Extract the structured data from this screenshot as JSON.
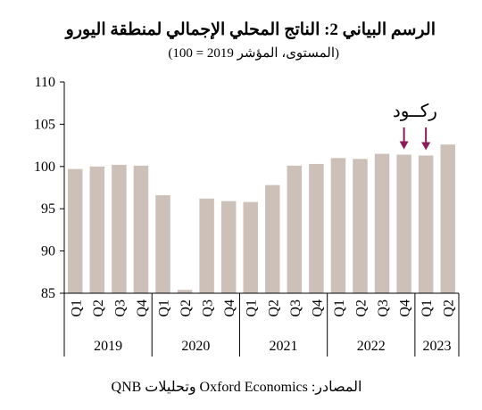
{
  "title": "الرسم البياني 2: الناتج المحلي الإجمالي لمنطقة اليورو",
  "subtitle": "(المستوى، المؤشر 2019 = 100)",
  "source": "المصادر: Oxford Economics وتحليلات QNB",
  "chart_data": {
    "type": "bar",
    "categories": [
      "Q1",
      "Q2",
      "Q3",
      "Q4",
      "Q1",
      "Q2",
      "Q3",
      "Q4",
      "Q1",
      "Q2",
      "Q3",
      "Q4",
      "Q1",
      "Q2",
      "Q3",
      "Q4",
      "Q1",
      "Q2"
    ],
    "years": [
      {
        "label": "2019",
        "count": 4
      },
      {
        "label": "2020",
        "count": 4
      },
      {
        "label": "2021",
        "count": 4
      },
      {
        "label": "2022",
        "count": 4
      },
      {
        "label": "2023",
        "count": 2
      }
    ],
    "values": [
      99.7,
      100.0,
      100.2,
      100.1,
      96.6,
      85.4,
      96.2,
      95.9,
      95.8,
      97.8,
      100.1,
      100.3,
      101.0,
      100.9,
      101.5,
      101.4,
      101.3,
      102.6
    ],
    "ylim": [
      85,
      110
    ],
    "yticks": [
      85,
      90,
      95,
      100,
      105,
      110
    ],
    "bar_color": "#cdc0b8",
    "annotation": {
      "text": "ركــود",
      "color": "#8b1a5a",
      "arrow_indices": [
        15,
        16
      ]
    }
  }
}
